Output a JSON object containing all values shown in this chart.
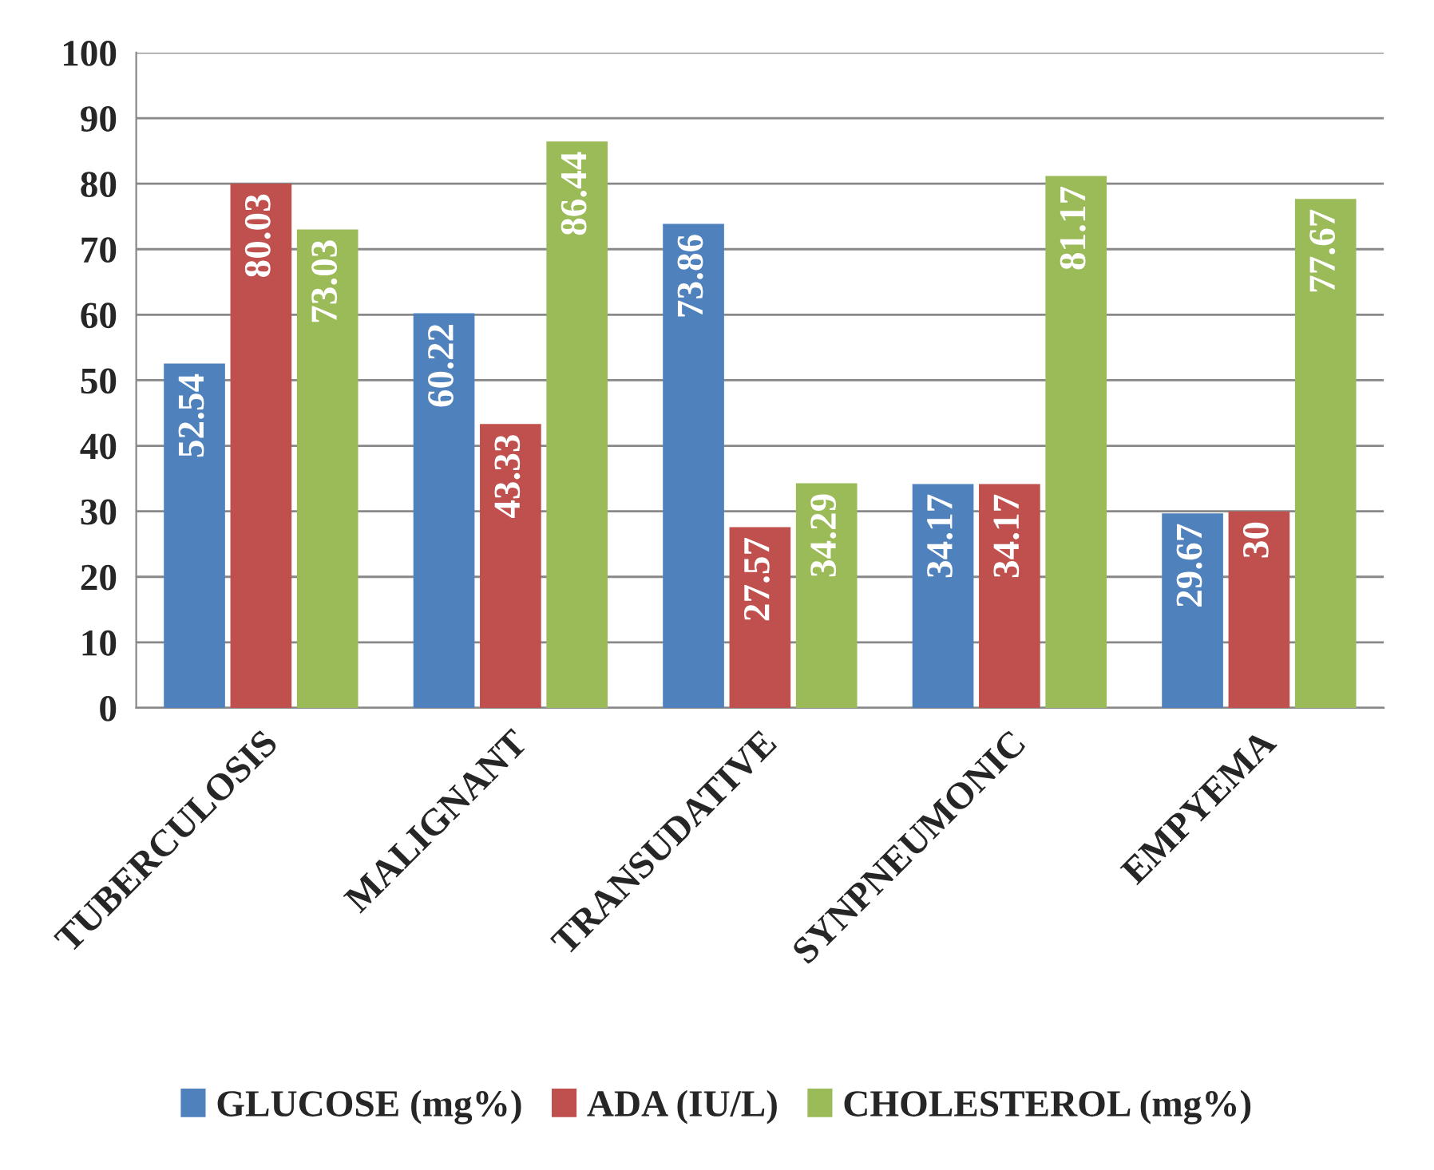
{
  "chart_data": {
    "type": "bar",
    "categories": [
      "TUBERCULOSIS",
      "MALIGNANT",
      "TRANSUDATIVE",
      "SYNPNEUMONIC",
      "EMPYEMA"
    ],
    "series": [
      {
        "name": "GLUCOSE (mg%)",
        "color": "#4f81bd",
        "values": [
          52.54,
          60.22,
          73.86,
          34.17,
          29.67
        ]
      },
      {
        "name": "ADA (IU/L)",
        "color": "#c0504d",
        "values": [
          80.03,
          43.33,
          27.57,
          34.17,
          30
        ]
      },
      {
        "name": "CHOLESTEROL (mg%)",
        "color": "#9bbb59",
        "values": [
          73.03,
          86.44,
          34.29,
          81.17,
          77.67
        ]
      }
    ],
    "ylim": [
      0,
      100
    ],
    "yticks": [
      0,
      10,
      20,
      30,
      40,
      50,
      60,
      70,
      80,
      90,
      100
    ],
    "grid": "y",
    "legend": "bottom",
    "data_labels": true
  }
}
